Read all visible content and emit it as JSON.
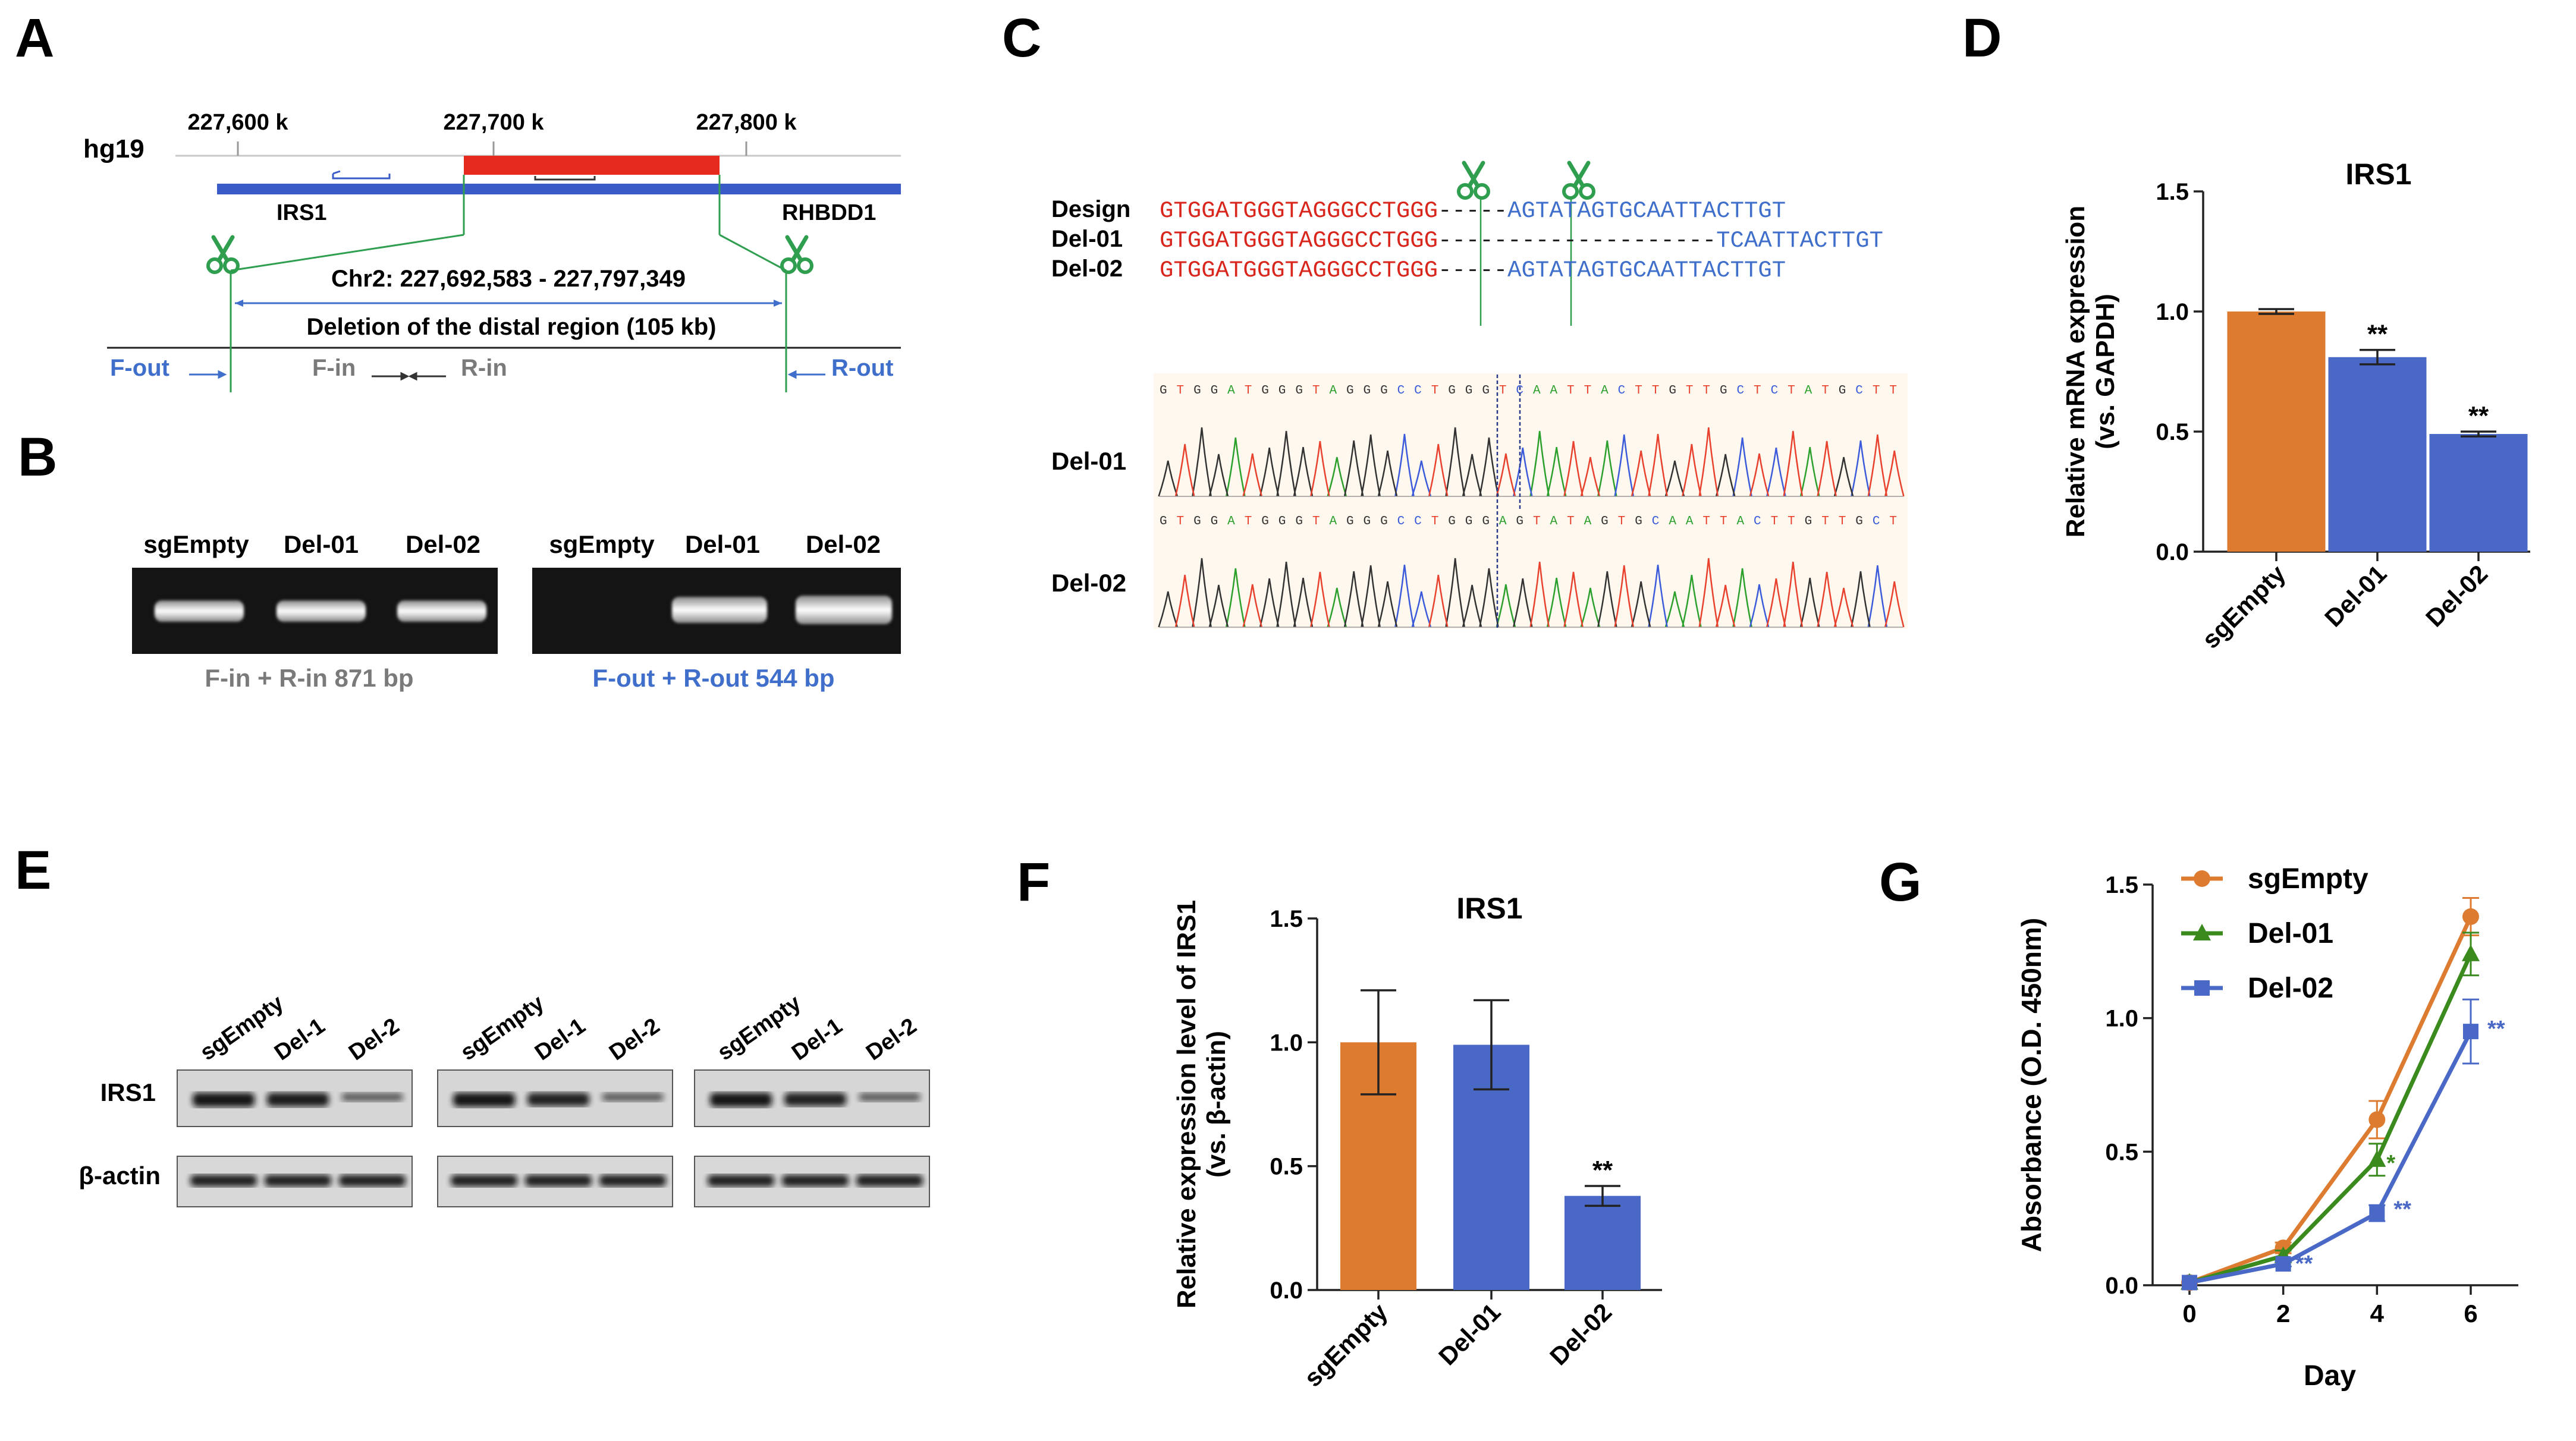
{
  "panels": {
    "A": "A",
    "B": "B",
    "C": "C",
    "D": "D",
    "E": "E",
    "F": "F",
    "G": "G"
  },
  "colors": {
    "orange": "#DD7B31",
    "blue": "#4A68C6",
    "green": "#3A8A1E",
    "red_seq": "#D9261C",
    "blue_seq": "#3F6FCB",
    "gene_bar": "#3A5BC7",
    "deletion": "#E62B1E",
    "scissors": "#2F9E4F"
  },
  "panelA": {
    "assembly": "hg19",
    "coords": [
      "227,600 k",
      "227,700 k",
      "227,800 k"
    ],
    "gene_left": "IRS1",
    "gene_right": "RHBDD1",
    "region_label": "Chr2: 227,692,583 - 227,797,349",
    "deletion_label": "Deletion of the distal region (105 kb)",
    "primers": {
      "f_out": "F-out",
      "f_in": "F-in",
      "r_in": "R-in",
      "r_out": "R-out"
    }
  },
  "panelB": {
    "lanes_left": [
      "sgEmpty",
      "Del-01",
      "Del-02"
    ],
    "lanes_right": [
      "sgEmpty",
      "Del-01",
      "Del-02"
    ],
    "caption_left": "F-in + R-in 871 bp",
    "caption_right": "F-out + R-out 544 bp"
  },
  "panelC": {
    "rows": [
      {
        "label": "Design",
        "left": "GTGGATGGGTAGGGCCTGGG",
        "gap": "-----",
        "right": "AGTATAGTGCAATTACTTGT"
      },
      {
        "label": "Del-01",
        "left": "GTGGATGGGTAGGGCCTGGG",
        "gap": "--------------------",
        "right": "TCAATTACTTGT"
      },
      {
        "label": "Del-02",
        "left": "GTGGATGGGTAGGGCCTGGG",
        "gap": "-----",
        "right": "AGTATAGTGCAATTACTTGT"
      }
    ],
    "trace1_label": "Del-01",
    "trace2_label": "Del-02",
    "trace1_seq": "GTGGATGGGTAGGGCCTGGGTCAATTACTTGTTGCTCTATGCTT",
    "trace2_seq": "GTGGATGGGTAGGGCCTGGGAGTATAGTGCAATTACTTGTTGCT"
  },
  "panelE": {
    "lanes": [
      "sgEmpty",
      "Del-1",
      "Del-2"
    ],
    "rows": [
      "IRS1",
      "β-actin"
    ],
    "irs1_intensity": [
      [
        1.0,
        0.95,
        0.35
      ],
      [
        1.0,
        0.9,
        0.35
      ],
      [
        1.0,
        0.9,
        0.35
      ]
    ]
  },
  "chart_data": [
    {
      "panel": "D",
      "type": "bar",
      "title": "IRS1",
      "ylabel_line1": "Relative mRNA expression",
      "ylabel_line2": "(vs. GAPDH)",
      "categories": [
        "sgEmpty",
        "Del-01",
        "Del-02"
      ],
      "values": [
        1.0,
        0.81,
        0.49
      ],
      "errors": [
        0.01,
        0.03,
        0.01
      ],
      "significance": [
        "",
        "**",
        "**"
      ],
      "ylim": [
        0,
        1.5
      ],
      "yticks": [
        "0.0",
        "0.5",
        "1.0",
        "1.5"
      ]
    },
    {
      "panel": "F",
      "type": "bar",
      "title": "IRS1",
      "ylabel_line1": "Relative expression level of IRS1",
      "ylabel_line2": "(vs. β-actin)",
      "categories": [
        "sgEmpty",
        "Del-01",
        "Del-02"
      ],
      "values": [
        1.0,
        0.99,
        0.38
      ],
      "errors": [
        0.21,
        0.18,
        0.04
      ],
      "significance": [
        "",
        "",
        "**"
      ],
      "ylim": [
        0,
        1.5
      ],
      "yticks": [
        "0.0",
        "0.5",
        "1.0",
        "1.5"
      ]
    },
    {
      "panel": "G",
      "type": "line",
      "xlabel": "Day",
      "ylabel": "Absorbance (O.D. 450nm)",
      "x": [
        0,
        2,
        4,
        6
      ],
      "xticks": [
        "0",
        "2",
        "4",
        "6"
      ],
      "yticks": [
        "0.0",
        "0.5",
        "1.0",
        "1.5"
      ],
      "ylim": [
        0,
        1.5
      ],
      "legend_position": "top-left",
      "series": [
        {
          "name": "sgEmpty",
          "values": [
            0.01,
            0.14,
            0.62,
            1.38
          ],
          "errors": [
            0.0,
            0.02,
            0.07,
            0.07
          ],
          "marker": "circle",
          "significance": [
            "",
            "",
            "",
            ""
          ]
        },
        {
          "name": "Del-01",
          "values": [
            0.01,
            0.11,
            0.47,
            1.24
          ],
          "errors": [
            0.0,
            0.02,
            0.06,
            0.08
          ],
          "marker": "triangle",
          "significance": [
            "",
            "",
            "*",
            ""
          ]
        },
        {
          "name": "Del-02",
          "values": [
            0.01,
            0.08,
            0.27,
            0.95
          ],
          "errors": [
            0.0,
            0.01,
            0.03,
            0.12
          ],
          "marker": "square",
          "significance": [
            "",
            "**",
            "**",
            "**"
          ]
        }
      ]
    }
  ]
}
